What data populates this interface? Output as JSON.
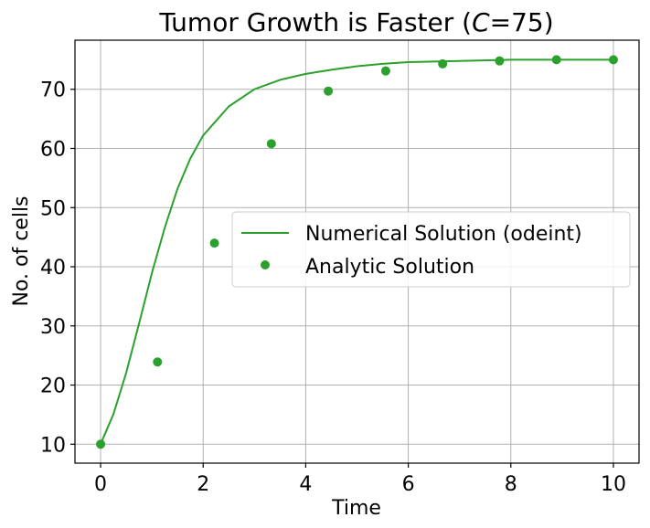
{
  "chart_data": {
    "type": "scatter",
    "title": {
      "prefix": "Tumor Growth is Faster (",
      "italic": "C",
      "suffix": "=75)"
    },
    "xlabel": "Time",
    "ylabel": "No. of cells",
    "xlim": [
      -0.5,
      10.5
    ],
    "ylim": [
      6.8,
      78.3
    ],
    "x_ticks": [
      0,
      2,
      4,
      6,
      8,
      10
    ],
    "y_ticks": [
      10,
      20,
      30,
      40,
      50,
      60,
      70
    ],
    "grid": true,
    "legend_position": "center-right",
    "color": "#2ca02c",
    "series": [
      {
        "name": "Numerical Solution (odeint)",
        "kind": "line",
        "x": [
          0,
          0.25,
          0.5,
          0.75,
          1,
          1.25,
          1.5,
          1.75,
          2,
          2.5,
          3,
          3.5,
          4,
          4.5,
          5,
          5.5,
          6,
          7,
          8,
          9,
          10
        ],
        "y": [
          10,
          15.1,
          22.1,
          30.4,
          38.9,
          46.6,
          53.2,
          58.3,
          62.2,
          67.1,
          70.0,
          71.6,
          72.6,
          73.3,
          73.9,
          74.3,
          74.6,
          74.8,
          75.0,
          75.0,
          75.0
        ]
      },
      {
        "name": "Analytic Solution",
        "kind": "points",
        "x": [
          0,
          1.11,
          2.22,
          3.33,
          4.44,
          5.56,
          6.67,
          7.78,
          8.89,
          10
        ],
        "y": [
          10,
          23.9,
          44.0,
          60.8,
          69.7,
          73.1,
          74.3,
          74.8,
          75.0,
          75.0
        ]
      }
    ]
  }
}
